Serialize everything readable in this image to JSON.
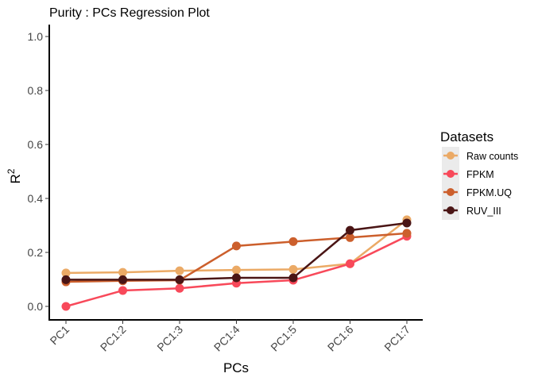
{
  "chart_data": {
    "type": "line",
    "title": "Purity : PCs Regression Plot",
    "xlabel": "PCs",
    "ylabel": "R2",
    "categories": [
      "PC1",
      "PC1:2",
      "PC1:3",
      "PC1:4",
      "PC1:5",
      "PC1:6",
      "PC1:7"
    ],
    "ylim": [
      0,
      1.0
    ],
    "yticks": [
      "0.0",
      "0.2",
      "0.4",
      "0.6",
      "0.8",
      "1.0"
    ],
    "grid": false,
    "legend": {
      "title": "Datasets",
      "placement": "right"
    },
    "series": [
      {
        "name": "Raw counts",
        "color": "#EBAA66",
        "values": [
          0.124,
          0.126,
          0.132,
          0.135,
          0.137,
          0.158,
          0.321
        ]
      },
      {
        "name": "FPKM",
        "color": "#F8495A",
        "values": [
          0.0,
          0.059,
          0.067,
          0.086,
          0.097,
          0.158,
          0.26
        ]
      },
      {
        "name": "FPKM.UQ",
        "color": "#CC5F2C",
        "values": [
          0.091,
          0.095,
          0.097,
          0.224,
          0.24,
          0.255,
          0.271
        ]
      },
      {
        "name": "RUV_III",
        "color": "#4A1515",
        "values": [
          0.099,
          0.099,
          0.099,
          0.106,
          0.106,
          0.282,
          0.309
        ]
      }
    ]
  }
}
